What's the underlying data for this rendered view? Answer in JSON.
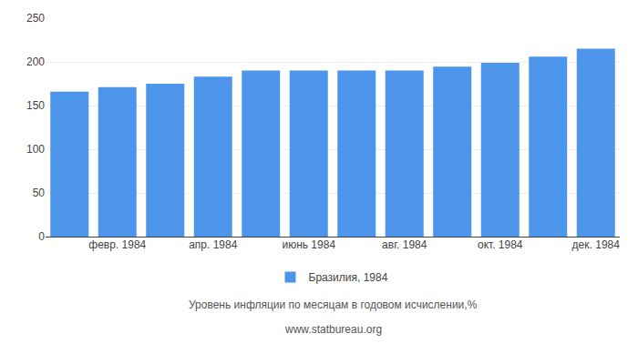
{
  "chart_data": {
    "type": "bar",
    "categories": [
      null,
      "февр. 1984",
      null,
      "апр. 1984",
      null,
      "июнь 1984",
      null,
      "авг. 1984",
      null,
      "окт. 1984",
      null,
      "дек. 1984"
    ],
    "series": [
      {
        "name": "Бразилия, 1984",
        "color": "#4d94eb",
        "values": [
          166.0,
          171.0,
          175.0,
          183.0,
          190.0,
          190.0,
          190.0,
          190.0,
          194.5,
          199.0,
          206.0,
          215.0
        ]
      }
    ],
    "ylim": [
      0,
      250
    ],
    "yticks": [
      0,
      50,
      100,
      150,
      200,
      250
    ],
    "grid": true,
    "legend": "bottom",
    "xlabel": "Уровень инфляции по месяцам в годовом исчислении,%",
    "annotations": [
      "www.statbureau.org"
    ]
  }
}
